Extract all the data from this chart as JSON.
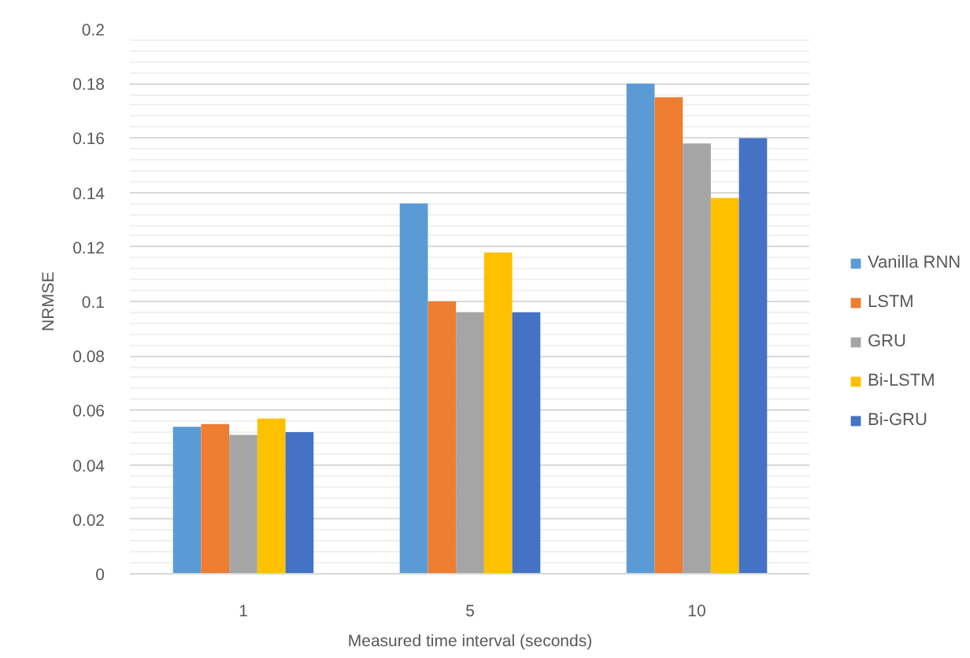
{
  "chart_data": {
    "type": "bar",
    "xlabel": "Measured time interval (seconds)",
    "ylabel": "NRMSE",
    "categories": [
      "1",
      "5",
      "10"
    ],
    "series": [
      {
        "name": "Vanilla RNN",
        "color": "#5b9bd5",
        "values": [
          0.054,
          0.136,
          0.18
        ]
      },
      {
        "name": "LSTM",
        "color": "#ed7d31",
        "values": [
          0.055,
          0.1,
          0.175
        ]
      },
      {
        "name": "GRU",
        "color": "#a5a5a5",
        "values": [
          0.051,
          0.096,
          0.158
        ]
      },
      {
        "name": "Bi-LSTM",
        "color": "#ffc000",
        "values": [
          0.057,
          0.118,
          0.138
        ]
      },
      {
        "name": "Bi-GRU",
        "color": "#4472c4",
        "values": [
          0.052,
          0.096,
          0.16
        ]
      }
    ],
    "ylim": [
      0,
      0.2
    ],
    "yticks": [
      0,
      0.02,
      0.04,
      0.06,
      0.08,
      0.1,
      0.12,
      0.14,
      0.16,
      0.18,
      0.2
    ],
    "grid": "y",
    "legend": "right"
  }
}
